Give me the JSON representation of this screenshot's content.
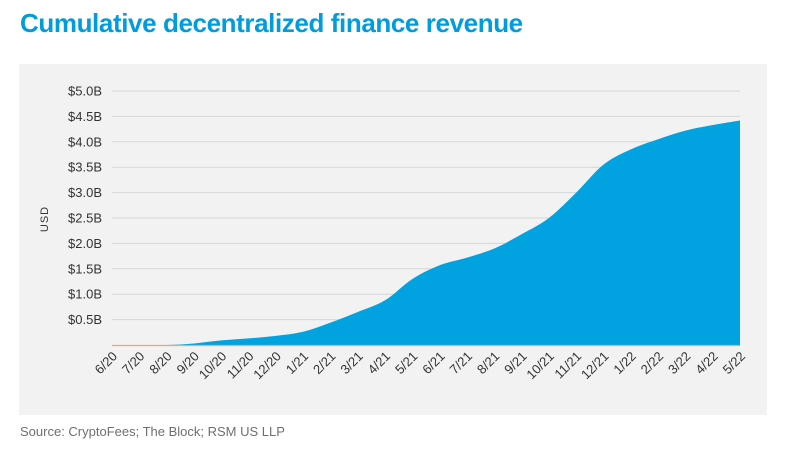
{
  "title": "Cumulative decentralized finance revenue",
  "source": "Source: CryptoFees; The Block; RSM US LLP",
  "colors": {
    "title": "#009CDE",
    "area": "#00A3DF",
    "baseline": "#F0A868",
    "panel": "#F2F2F2",
    "grid": "#D6D6D6"
  },
  "chart_data": {
    "type": "area",
    "title": "Cumulative decentralized finance revenue",
    "xlabel": "",
    "ylabel": "USD",
    "ylim": [
      0,
      5.0
    ],
    "y_unit": "billions of USD",
    "y_ticks": [
      0.5,
      1.0,
      1.5,
      2.0,
      2.5,
      3.0,
      3.5,
      4.0,
      4.5,
      5.0
    ],
    "y_tick_labels": [
      "$0.5B",
      "$1.0B",
      "$1.5B",
      "$2.0B",
      "$2.5B",
      "$3.0B",
      "$3.5B",
      "$4.0B",
      "$4.5B",
      "$5.0B"
    ],
    "categories": [
      "6/20",
      "7/20",
      "8/20",
      "9/20",
      "10/20",
      "11/20",
      "12/20",
      "1/21",
      "2/21",
      "3/21",
      "4/21",
      "5/21",
      "6/21",
      "7/21",
      "8/21",
      "9/21",
      "10/21",
      "11/21",
      "12/21",
      "1/22",
      "2/22",
      "3/22",
      "4/22",
      "5/22"
    ],
    "values": [
      0.0,
      0.0,
      0.0,
      0.03,
      0.09,
      0.13,
      0.18,
      0.26,
      0.44,
      0.65,
      0.88,
      1.3,
      1.57,
      1.72,
      1.9,
      2.18,
      2.5,
      3.0,
      3.55,
      3.85,
      4.05,
      4.22,
      4.33,
      4.42
    ],
    "grid": true,
    "legend": "none"
  }
}
